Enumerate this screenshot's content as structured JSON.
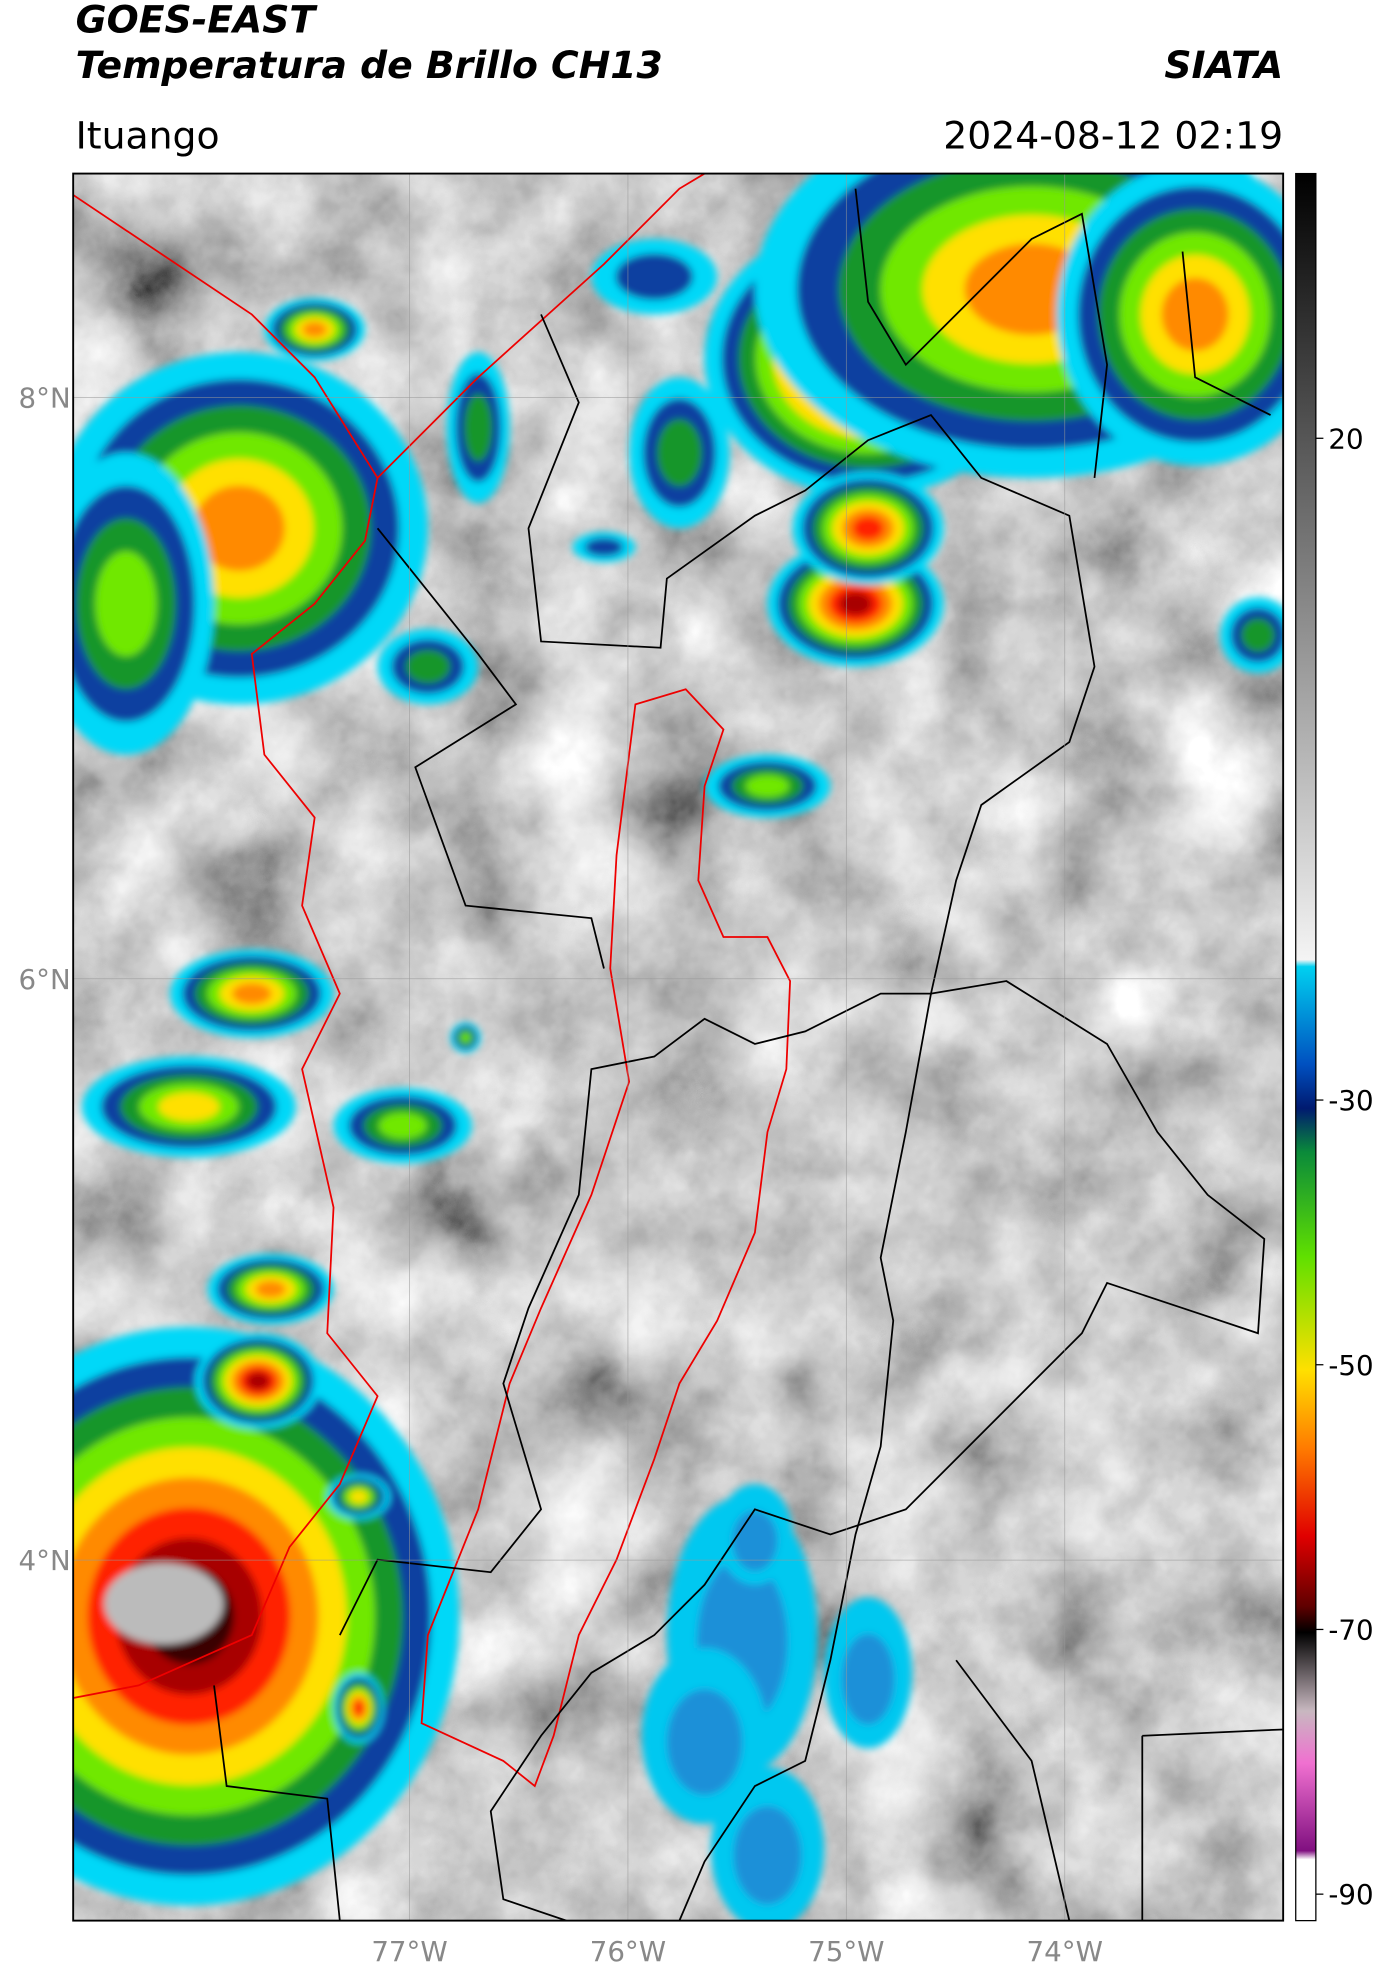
{
  "header": {
    "title": "GOES-EAST",
    "subtitle": "Temperatura de Brillo CH13",
    "brand": "SIATA",
    "location": "Ituango",
    "datetime": "2024-08-12 02:19"
  },
  "map": {
    "lonlim": [
      -78.54,
      -73.0
    ],
    "latlim": [
      2.76,
      8.77
    ],
    "lon_ticks": [
      {
        "value": -77,
        "label": "77°W"
      },
      {
        "value": -76,
        "label": "76°W"
      },
      {
        "value": -75,
        "label": "75°W"
      },
      {
        "value": -74,
        "label": "74°W"
      }
    ],
    "lat_ticks": [
      {
        "value": 8,
        "label": "8°N"
      },
      {
        "value": 6,
        "label": "6°N"
      },
      {
        "value": 4,
        "label": "4°N"
      }
    ]
  },
  "colorbar": {
    "lim": [
      -92,
      40
    ],
    "ticks": [
      20,
      -30,
      -50,
      -70,
      -90
    ]
  }
}
